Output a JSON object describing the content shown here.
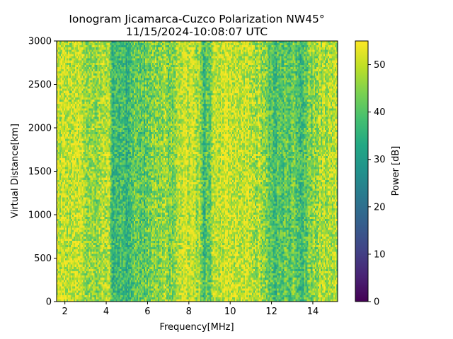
{
  "chart_data": {
    "type": "heatmap",
    "title": "Ionogram Jicamarca-Cuzco Polarization NW45°",
    "subtitle": "11/15/2024-10:08:07 UTC",
    "xlabel": "Frequency[MHz]",
    "ylabel": "Virtual Distance[km]",
    "xlim": [
      1.6,
      15.2
    ],
    "ylim": [
      0,
      3000
    ],
    "x_ticks": [
      2,
      4,
      6,
      8,
      10,
      12,
      14
    ],
    "x_tick_labels": [
      "2",
      "4",
      "6",
      "8",
      "10",
      "12",
      "14"
    ],
    "y_ticks": [
      0,
      500,
      1000,
      1500,
      2000,
      2500,
      3000
    ],
    "y_tick_labels": [
      "0",
      "500",
      "1000",
      "1500",
      "2000",
      "2500",
      "3000"
    ],
    "colorbar": {
      "label": "Power [dB]",
      "colormap": "viridis",
      "range": [
        0,
        55
      ],
      "ticks": [
        0,
        10,
        20,
        30,
        40,
        50
      ],
      "tick_labels": [
        "0",
        "10",
        "20",
        "30",
        "40",
        "50"
      ]
    },
    "column_profile": {
      "freq_mhz": [
        1.6,
        2.8,
        3.0,
        4.1,
        4.3,
        5.0,
        5.6,
        5.9,
        6.6,
        7.2,
        7.6,
        8.5,
        8.7,
        9.0,
        9.2,
        11.0,
        11.6,
        12.2,
        12.4,
        13.0,
        13.5,
        13.8,
        14.3,
        15.2
      ],
      "mean_power_db": [
        50,
        49,
        46,
        49,
        38,
        38,
        42,
        40,
        47,
        45,
        50,
        49,
        38,
        41,
        50,
        51,
        46,
        38,
        40,
        42,
        37,
        44,
        47,
        49
      ]
    }
  }
}
